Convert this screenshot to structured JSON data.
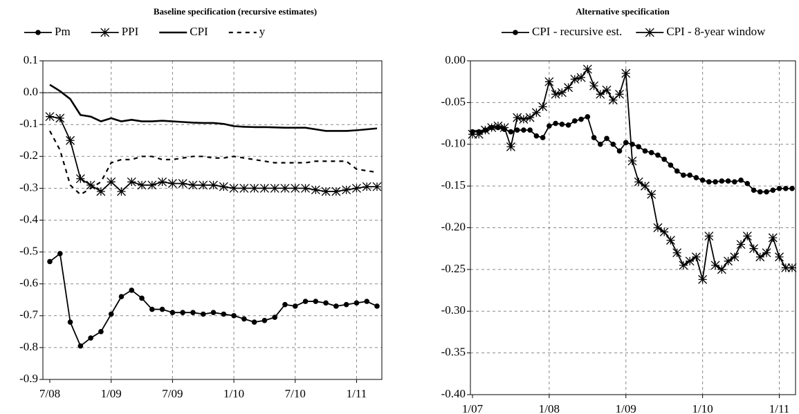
{
  "chart_data": [
    {
      "type": "line",
      "title": "Baseline specification (recursive estimates)",
      "categories": [
        "7/08",
        null,
        null,
        null,
        null,
        null,
        "1/09",
        null,
        null,
        null,
        null,
        null,
        "7/09",
        null,
        null,
        null,
        null,
        null,
        "1/10",
        null,
        null,
        null,
        null,
        null,
        "7/10",
        null,
        null,
        null,
        null,
        null,
        "1/11",
        null,
        null
      ],
      "series": [
        {
          "name": "Pm",
          "color": "#000000",
          "marker": "circle",
          "line_style": "solid",
          "values": [
            -0.53,
            -0.505,
            -0.72,
            -0.795,
            -0.77,
            -0.75,
            -0.695,
            -0.64,
            -0.62,
            -0.645,
            -0.68,
            -0.68,
            -0.69,
            -0.69,
            -0.69,
            -0.695,
            -0.69,
            -0.695,
            -0.7,
            -0.71,
            -0.72,
            -0.715,
            -0.705,
            -0.665,
            -0.67,
            -0.655,
            -0.655,
            -0.66,
            -0.67,
            -0.665,
            -0.66,
            -0.655,
            -0.67
          ]
        },
        {
          "name": "PPI",
          "color": "#000000",
          "marker": "asterisk",
          "line_style": "solid",
          "values": [
            -0.075,
            -0.08,
            -0.15,
            -0.27,
            -0.29,
            -0.31,
            -0.28,
            -0.31,
            -0.28,
            -0.29,
            -0.29,
            -0.28,
            -0.285,
            -0.285,
            -0.29,
            -0.29,
            -0.29,
            -0.295,
            -0.3,
            -0.3,
            -0.3,
            -0.3,
            -0.3,
            -0.3,
            -0.3,
            -0.3,
            -0.305,
            -0.31,
            -0.31,
            -0.305,
            -0.3,
            -0.295,
            -0.295
          ]
        },
        {
          "name": "CPI",
          "color": "#000000",
          "marker": "none",
          "line_style": "thick",
          "values": [
            0.025,
            0.005,
            -0.02,
            -0.07,
            -0.075,
            -0.09,
            -0.08,
            -0.09,
            -0.085,
            -0.09,
            -0.09,
            -0.088,
            -0.09,
            -0.092,
            -0.094,
            -0.095,
            -0.095,
            -0.098,
            -0.105,
            -0.107,
            -0.108,
            -0.108,
            -0.109,
            -0.11,
            -0.11,
            -0.11,
            -0.115,
            -0.12,
            -0.12,
            -0.12,
            -0.118,
            -0.115,
            -0.112
          ]
        },
        {
          "name": "y",
          "color": "#000000",
          "marker": "none",
          "line_style": "dashed",
          "values": [
            -0.12,
            -0.18,
            -0.29,
            -0.32,
            -0.3,
            -0.28,
            -0.22,
            -0.21,
            -0.21,
            -0.2,
            -0.2,
            -0.21,
            -0.21,
            -0.205,
            -0.2,
            -0.2,
            -0.205,
            -0.205,
            -0.2,
            -0.205,
            -0.21,
            -0.215,
            -0.22,
            -0.22,
            -0.22,
            -0.22,
            -0.215,
            -0.215,
            -0.215,
            -0.215,
            -0.24,
            -0.245,
            -0.25
          ]
        }
      ],
      "ylim": [
        -0.9,
        0.1
      ],
      "yticks": [
        0.1,
        {
          "value": 0,
          "label": "0.0"
        },
        -0.1,
        -0.2,
        -0.3,
        -0.4,
        -0.5,
        -0.6,
        -0.7,
        -0.8,
        -0.9
      ],
      "grid": true,
      "zero_line": true,
      "legend": "top"
    },
    {
      "type": "line",
      "title": "Alternative specification",
      "categories": [
        "1/07",
        null,
        null,
        null,
        null,
        null,
        null,
        null,
        null,
        null,
        null,
        null,
        "1/08",
        null,
        null,
        null,
        null,
        null,
        null,
        null,
        null,
        null,
        null,
        null,
        "1/09",
        null,
        null,
        null,
        null,
        null,
        null,
        null,
        null,
        null,
        null,
        null,
        "1/10",
        null,
        null,
        null,
        null,
        null,
        null,
        null,
        null,
        null,
        null,
        null,
        "1/11",
        null,
        null
      ],
      "series": [
        {
          "name": "CPI - recursive est.",
          "color": "#000000",
          "marker": "circle",
          "line_style": "solid",
          "values": [
            -0.085,
            -0.085,
            -0.083,
            -0.08,
            -0.08,
            -0.082,
            -0.085,
            -0.083,
            -0.083,
            -0.083,
            -0.09,
            -0.092,
            -0.078,
            -0.075,
            -0.076,
            -0.077,
            -0.072,
            -0.07,
            -0.067,
            -0.092,
            -0.1,
            -0.093,
            -0.1,
            -0.108,
            -0.098,
            -0.1,
            -0.103,
            -0.108,
            -0.11,
            -0.113,
            -0.118,
            -0.125,
            -0.132,
            -0.137,
            -0.137,
            -0.14,
            -0.143,
            -0.145,
            -0.145,
            -0.144,
            -0.144,
            -0.145,
            -0.143,
            -0.147,
            -0.155,
            -0.157,
            -0.157,
            -0.155,
            -0.153,
            -0.153,
            -0.153
          ]
        },
        {
          "name": "CPI - 8-year window",
          "color": "#000000",
          "marker": "asterisk",
          "line_style": "solid",
          "values": [
            -0.088,
            -0.088,
            -0.083,
            -0.08,
            -0.078,
            -0.08,
            -0.103,
            -0.068,
            -0.07,
            -0.068,
            -0.062,
            -0.055,
            -0.025,
            -0.04,
            -0.038,
            -0.032,
            -0.022,
            -0.02,
            -0.01,
            -0.03,
            -0.04,
            -0.035,
            -0.047,
            -0.04,
            -0.015,
            -0.12,
            -0.145,
            -0.15,
            -0.16,
            -0.2,
            -0.205,
            -0.215,
            -0.23,
            -0.245,
            -0.24,
            -0.235,
            -0.262,
            -0.21,
            -0.245,
            -0.25,
            -0.24,
            -0.235,
            -0.22,
            -0.21,
            -0.225,
            -0.235,
            -0.23,
            -0.212,
            -0.235,
            -0.248,
            -0.248
          ]
        }
      ],
      "ylim": [
        -0.4,
        0
      ],
      "yticks": [
        {
          "value": 0,
          "label": "0.00"
        },
        -0.05,
        {
          "value": -0.1,
          "label": "-0.10"
        },
        -0.15,
        {
          "value": -0.2,
          "label": "-0.20"
        },
        -0.25,
        {
          "value": -0.3,
          "label": "-0.30"
        },
        -0.35,
        {
          "value": -0.4,
          "label": "-0.40"
        }
      ],
      "grid": true,
      "zero_line": false,
      "legend": "top"
    }
  ]
}
